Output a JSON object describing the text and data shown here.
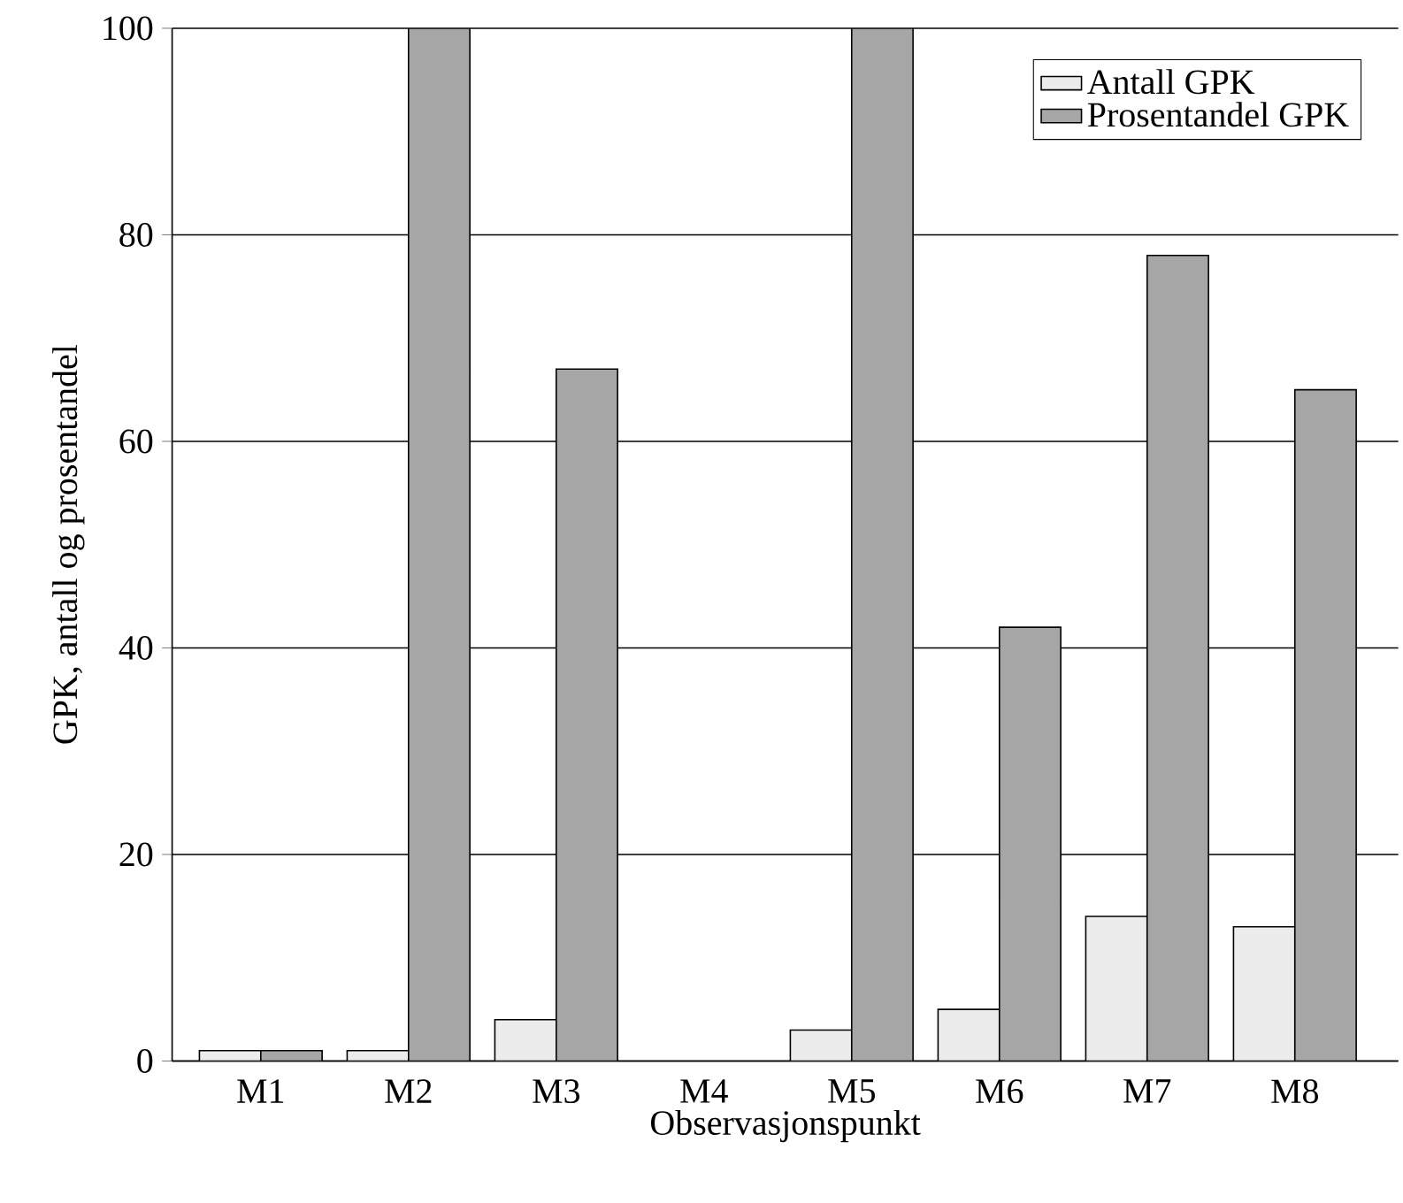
{
  "chart_data": {
    "type": "bar",
    "xlabel": "Observasjonspunkt",
    "ylabel": "GPK, antall og prosentandel",
    "categories": [
      "M1",
      "M2",
      "M3",
      "M4",
      "M5",
      "M6",
      "M7",
      "M8"
    ],
    "series": [
      {
        "name": "Antall GPK",
        "color": "#ececec",
        "values": [
          1,
          1,
          4,
          null,
          3,
          5,
          14,
          13
        ]
      },
      {
        "name": "Prosentandel GPK",
        "color": "#a6a6a6",
        "values": [
          1,
          100,
          67,
          null,
          100,
          42,
          78,
          65
        ]
      }
    ],
    "ylim": [
      0,
      100
    ],
    "yticks": [
      0,
      20,
      40,
      60,
      80,
      100
    ],
    "grid": "y",
    "legend": "top right"
  }
}
